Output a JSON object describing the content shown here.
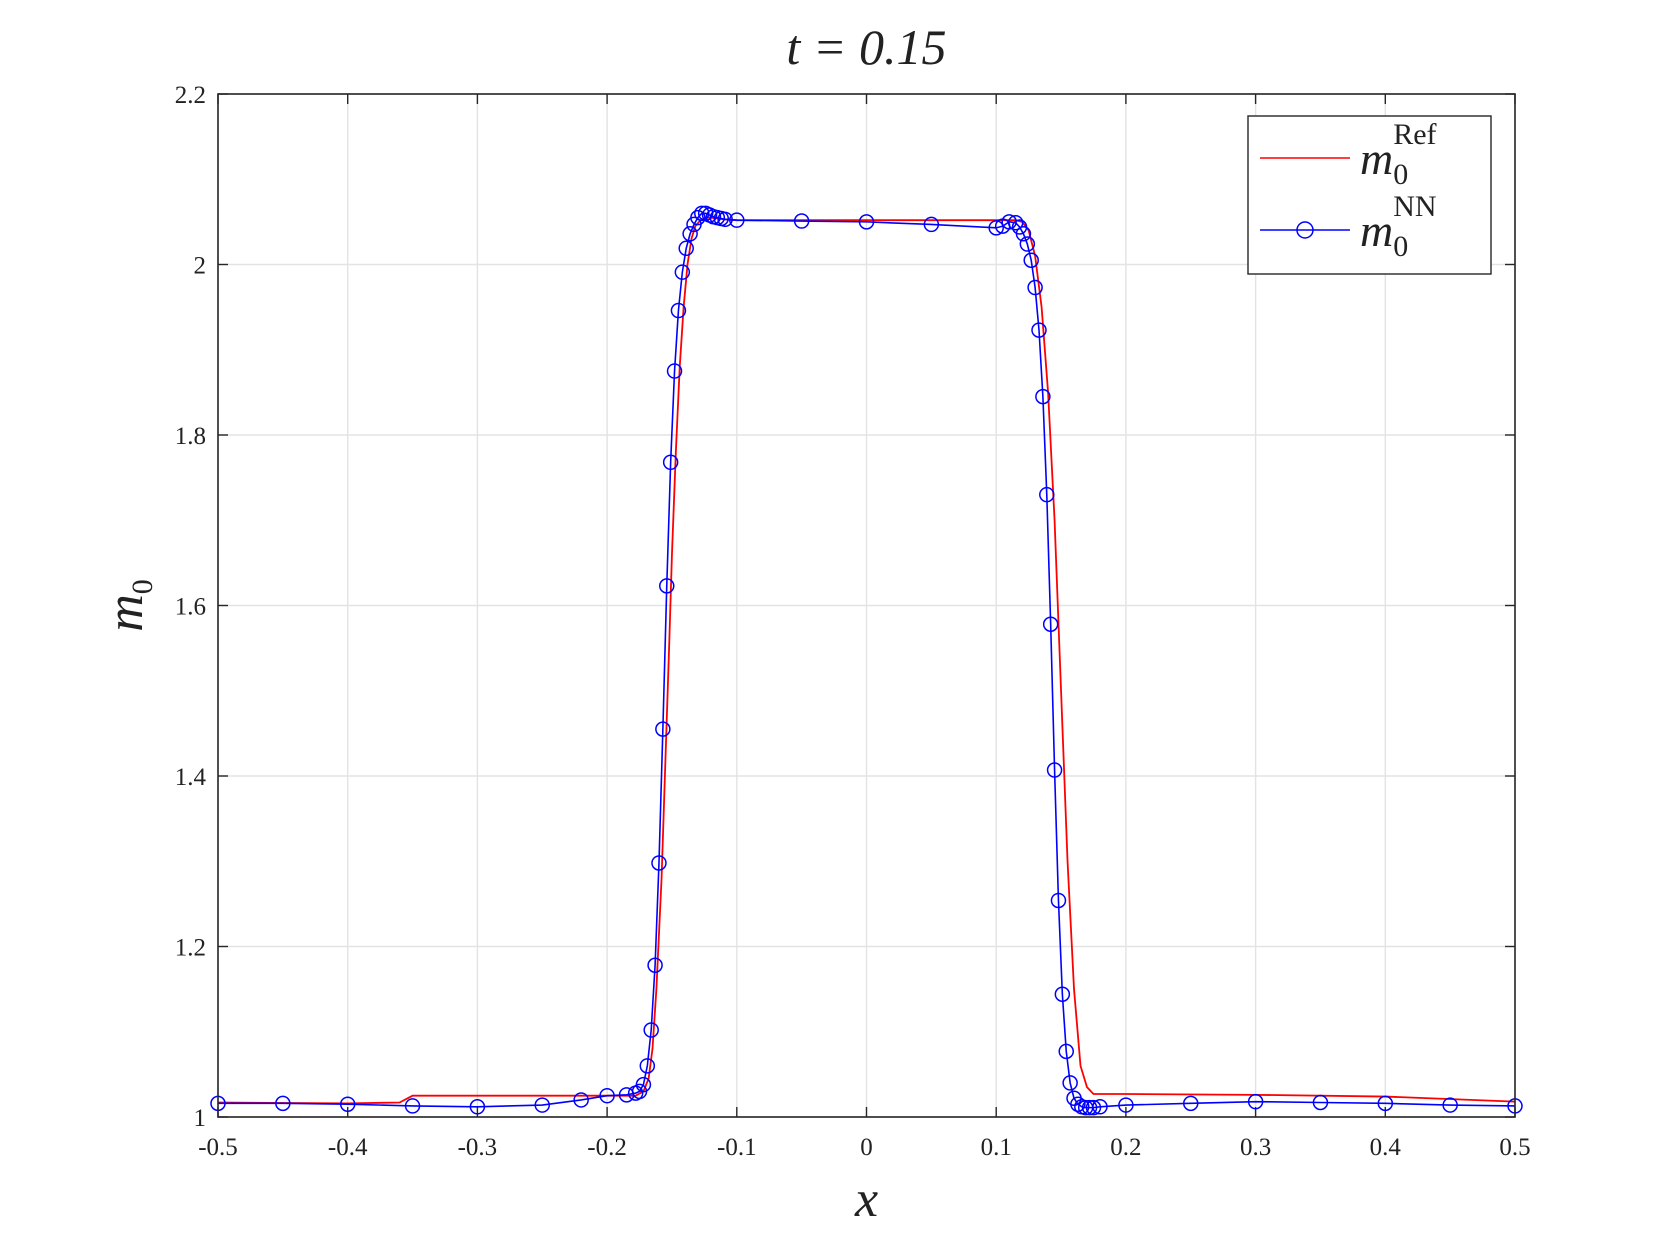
{
  "chart_data": {
    "type": "line",
    "title": "t = 0.15",
    "xlabel": "x",
    "ylabel": "m_0",
    "xlim": [
      -0.5,
      0.5
    ],
    "ylim": [
      1,
      2.2
    ],
    "x_ticks": [
      -0.5,
      -0.4,
      -0.3,
      -0.2,
      -0.1,
      0,
      0.1,
      0.2,
      0.3,
      0.4,
      0.5
    ],
    "x_tick_labels": [
      "-0.5",
      "-0.4",
      "-0.3",
      "-0.2",
      "-0.1",
      "0",
      "0.1",
      "0.2",
      "0.3",
      "0.4",
      "0.5"
    ],
    "y_ticks": [
      1,
      1.2,
      1.4,
      1.6,
      1.8,
      2,
      2.2
    ],
    "y_tick_labels": [
      "1",
      "1.2",
      "1.4",
      "1.6",
      "1.8",
      "2",
      "2.2"
    ],
    "grid": true,
    "legend_position": "top-right",
    "series": [
      {
        "name": "m_0^Ref",
        "label_base": "m",
        "label_sub": "0",
        "label_sup": "Ref",
        "color": "#ff0000",
        "style": "line",
        "x": [
          -0.5,
          -0.4,
          -0.36,
          -0.35,
          -0.3,
          -0.25,
          -0.2,
          -0.185,
          -0.178,
          -0.172,
          -0.168,
          -0.165,
          -0.162,
          -0.158,
          -0.155,
          -0.152,
          -0.15,
          -0.147,
          -0.144,
          -0.141,
          -0.138,
          -0.135,
          -0.132,
          -0.128,
          -0.124,
          -0.12,
          -0.115,
          -0.11,
          -0.1,
          -0.05,
          0,
          0.05,
          0.1,
          0.105,
          0.11,
          0.115,
          0.12,
          0.125,
          0.13,
          0.135,
          0.14,
          0.145,
          0.15,
          0.155,
          0.16,
          0.165,
          0.17,
          0.175,
          0.2,
          0.3,
          0.4,
          0.5
        ],
        "y": [
          1.017,
          1.016,
          1.017,
          1.025,
          1.025,
          1.025,
          1.025,
          1.025,
          1.025,
          1.03,
          1.045,
          1.08,
          1.15,
          1.28,
          1.42,
          1.56,
          1.66,
          1.78,
          1.88,
          1.95,
          2.0,
          2.03,
          2.045,
          2.052,
          2.055,
          2.055,
          2.054,
          2.053,
          2.052,
          2.052,
          2.052,
          2.052,
          2.052,
          2.052,
          2.052,
          2.052,
          2.05,
          2.04,
          2.01,
          1.95,
          1.85,
          1.7,
          1.5,
          1.3,
          1.15,
          1.06,
          1.035,
          1.027,
          1.027,
          1.026,
          1.024,
          1.018
        ]
      },
      {
        "name": "m_0^NN",
        "label_base": "m",
        "label_sub": "0",
        "label_sup": "NN",
        "color": "#0000ff",
        "style": "line-circle",
        "x": [
          -0.5,
          -0.45,
          -0.4,
          -0.35,
          -0.3,
          -0.25,
          -0.22,
          -0.2,
          -0.185,
          -0.178,
          -0.175,
          -0.172,
          -0.169,
          -0.166,
          -0.163,
          -0.16,
          -0.157,
          -0.154,
          -0.151,
          -0.148,
          -0.145,
          -0.142,
          -0.139,
          -0.136,
          -0.133,
          -0.13,
          -0.127,
          -0.124,
          -0.121,
          -0.118,
          -0.115,
          -0.112,
          -0.109,
          -0.1,
          -0.05,
          0,
          0.05,
          0.1,
          0.105,
          0.11,
          0.115,
          0.118,
          0.121,
          0.124,
          0.127,
          0.13,
          0.133,
          0.136,
          0.139,
          0.142,
          0.145,
          0.148,
          0.151,
          0.154,
          0.157,
          0.16,
          0.163,
          0.166,
          0.169,
          0.172,
          0.175,
          0.18,
          0.2,
          0.25,
          0.3,
          0.35,
          0.4,
          0.45,
          0.5
        ],
        "y": [
          1.016,
          1.016,
          1.015,
          1.013,
          1.012,
          1.014,
          1.02,
          1.025,
          1.026,
          1.028,
          1.03,
          1.038,
          1.06,
          1.102,
          1.178,
          1.298,
          1.455,
          1.623,
          1.768,
          1.875,
          1.946,
          1.991,
          2.019,
          2.036,
          2.047,
          2.055,
          2.06,
          2.06,
          2.058,
          2.056,
          2.055,
          2.054,
          2.053,
          2.052,
          2.051,
          2.05,
          2.047,
          2.043,
          2.045,
          2.05,
          2.049,
          2.044,
          2.036,
          2.024,
          2.005,
          1.973,
          1.923,
          1.845,
          1.73,
          1.578,
          1.407,
          1.254,
          1.144,
          1.077,
          1.04,
          1.022,
          1.015,
          1.012,
          1.011,
          1.011,
          1.011,
          1.012,
          1.014,
          1.016,
          1.018,
          1.017,
          1.016,
          1.014,
          1.013
        ]
      }
    ]
  }
}
